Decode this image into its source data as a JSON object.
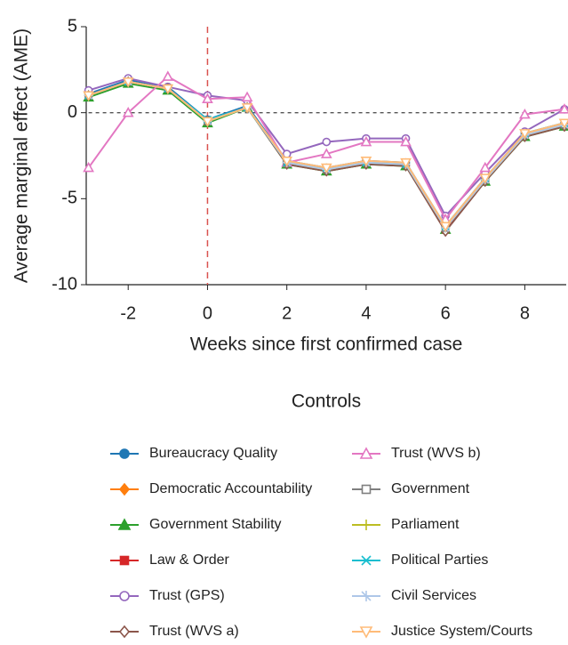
{
  "chart_data": {
    "type": "line",
    "x_label": "Weeks since first confirmed case",
    "y_label": "Average marginal effect (AME)",
    "legend_title": "Controls",
    "legend_position": "bottom",
    "x": [
      -3,
      -2,
      -1,
      0,
      1,
      2,
      3,
      4,
      5,
      6,
      7,
      8,
      9
    ],
    "xlim": [
      -3,
      9
    ],
    "xticks": [
      -2,
      0,
      2,
      4,
      6,
      8
    ],
    "ylim": [
      -10,
      5
    ],
    "yticks": [
      -10,
      -5,
      0,
      5
    ],
    "hline": 0,
    "vline": 0,
    "hline_color": "#555555",
    "vline_color": "#d9534f",
    "series": [
      {
        "name": "Bureaucracy Quality",
        "color": "#1f77b4",
        "marker": "circle",
        "values": [
          1.1,
          1.9,
          1.5,
          -0.4,
          0.4,
          -2.8,
          -3.2,
          -2.8,
          -2.9,
          -6.6,
          -3.8,
          -1.2,
          -0.6
        ]
      },
      {
        "name": "Democratic Accountability",
        "color": "#ff7f0e",
        "marker": "diamond",
        "values": [
          1.0,
          1.8,
          1.4,
          -0.5,
          0.3,
          -2.9,
          -3.3,
          -2.9,
          -3.0,
          -6.7,
          -3.9,
          -1.3,
          -0.7
        ]
      },
      {
        "name": "Government Stability",
        "color": "#2ca02c",
        "marker": "triangle",
        "values": [
          0.9,
          1.7,
          1.3,
          -0.6,
          0.3,
          -3.0,
          -3.4,
          -3.0,
          -3.1,
          -6.8,
          -4.0,
          -1.4,
          -0.8
        ]
      },
      {
        "name": "Law & Order",
        "color": "#d62728",
        "marker": "square",
        "values": [
          1.0,
          1.8,
          1.4,
          -0.5,
          0.3,
          -2.9,
          -3.3,
          -2.9,
          -3.0,
          -6.8,
          -3.9,
          -1.3,
          -0.7
        ]
      },
      {
        "name": "Trust (GPS)",
        "color": "#9467bd",
        "marker": "open-circle",
        "values": [
          1.3,
          2.0,
          1.5,
          1.0,
          0.7,
          -2.4,
          -1.7,
          -1.5,
          -1.5,
          -6.0,
          -3.5,
          -1.1,
          0.2
        ]
      },
      {
        "name": "Trust (WVS a)",
        "color": "#8c564b",
        "marker": "open-diamond",
        "values": [
          1.0,
          1.8,
          1.4,
          -0.5,
          0.3,
          -3.0,
          -3.4,
          -3.0,
          -3.1,
          -6.9,
          -4.0,
          -1.4,
          -0.8
        ]
      },
      {
        "name": "Trust (WVS b)",
        "color": "#e377c2",
        "marker": "open-triangle",
        "values": [
          -3.2,
          0.0,
          2.1,
          0.8,
          0.9,
          -2.9,
          -2.4,
          -1.7,
          -1.7,
          -6.2,
          -3.2,
          -0.1,
          0.2
        ]
      },
      {
        "name": "Government",
        "color": "#7f7f7f",
        "marker": "open-square",
        "values": [
          1.0,
          1.8,
          1.4,
          -0.5,
          0.3,
          -2.9,
          -3.3,
          -2.9,
          -3.0,
          -6.7,
          -3.9,
          -1.3,
          -0.7
        ]
      },
      {
        "name": "Parliament",
        "color": "#bcbd22",
        "marker": "plus",
        "values": [
          1.0,
          1.8,
          1.4,
          -0.5,
          0.3,
          -2.9,
          -3.3,
          -2.9,
          -3.0,
          -6.7,
          -3.9,
          -1.3,
          -0.7
        ]
      },
      {
        "name": "Political Parties",
        "color": "#17becf",
        "marker": "cross",
        "values": [
          1.0,
          1.8,
          1.4,
          -0.4,
          0.3,
          -2.9,
          -3.2,
          -2.9,
          -3.0,
          -6.6,
          -3.8,
          -1.2,
          -0.6
        ]
      },
      {
        "name": "Civil Services",
        "color": "#aec7e8",
        "marker": "star",
        "values": [
          1.0,
          1.8,
          1.4,
          -0.5,
          0.3,
          -2.9,
          -3.3,
          -2.9,
          -3.0,
          -6.7,
          -3.9,
          -1.3,
          -0.7
        ]
      },
      {
        "name": "Justice System/Courts",
        "color": "#ffbb78",
        "marker": "down-triangle",
        "values": [
          1.0,
          1.8,
          1.4,
          -0.5,
          0.3,
          -2.8,
          -3.2,
          -2.8,
          -2.9,
          -6.6,
          -3.8,
          -1.2,
          -0.6
        ]
      }
    ]
  }
}
